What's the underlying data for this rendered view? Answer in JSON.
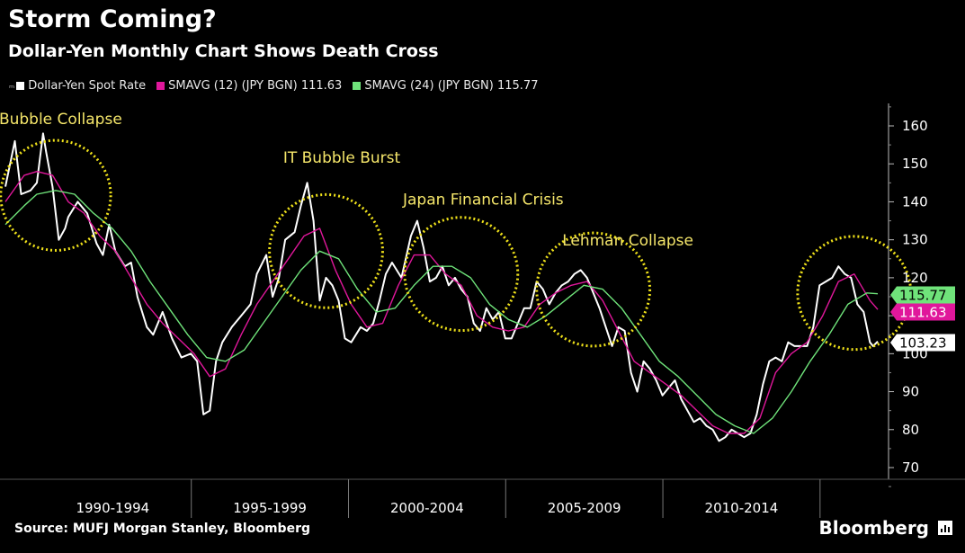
{
  "title": "Storm Coming?",
  "subtitle": "Dollar-Yen Monthly Chart Shows Death Cross",
  "source": "Source: MUFJ Morgan Stanley, Bloomberg",
  "brand": "Bloomberg",
  "legend": [
    {
      "label": "Dollar-Yen Spot Rate",
      "color": "#ffffff"
    },
    {
      "label": "SMAVG (12) (JPY BGN) 111.63",
      "color": "#e0179b"
    },
    {
      "label": "SMAVG (24) (JPY BGN) 115.77",
      "color": "#6fe37a"
    }
  ],
  "chart_data": {
    "type": "line",
    "x_range": [
      1989.0,
      2016.75
    ],
    "ylim": [
      65,
      165
    ],
    "y_ticks": [
      70,
      80,
      90,
      100,
      110,
      120,
      130,
      140,
      150,
      160
    ],
    "x_periods": [
      "1990-1994",
      "1995-1999",
      "2000-2004",
      "2005-2009",
      "2010-2014"
    ],
    "series": [
      {
        "name": "Dollar-Yen Spot Rate",
        "color": "#ffffff",
        "last_value": "103.23",
        "points": [
          [
            1989.0,
            144
          ],
          [
            1989.3,
            156
          ],
          [
            1989.5,
            142
          ],
          [
            1989.8,
            143
          ],
          [
            1990.0,
            145
          ],
          [
            1990.2,
            158
          ],
          [
            1990.3,
            153
          ],
          [
            1990.5,
            144
          ],
          [
            1990.7,
            130
          ],
          [
            1990.9,
            133
          ],
          [
            1991.0,
            136
          ],
          [
            1991.3,
            140
          ],
          [
            1991.6,
            137
          ],
          [
            1991.9,
            129
          ],
          [
            1992.1,
            126
          ],
          [
            1992.3,
            134
          ],
          [
            1992.5,
            127
          ],
          [
            1992.8,
            123
          ],
          [
            1993.0,
            124
          ],
          [
            1993.2,
            115
          ],
          [
            1993.5,
            107
          ],
          [
            1993.7,
            105
          ],
          [
            1994.0,
            111
          ],
          [
            1994.3,
            104
          ],
          [
            1994.6,
            99
          ],
          [
            1994.9,
            100
          ],
          [
            1995.1,
            98
          ],
          [
            1995.3,
            84
          ],
          [
            1995.5,
            85
          ],
          [
            1995.7,
            98
          ],
          [
            1995.9,
            103
          ],
          [
            1996.2,
            107
          ],
          [
            1996.5,
            110
          ],
          [
            1996.8,
            113
          ],
          [
            1997.0,
            121
          ],
          [
            1997.3,
            126
          ],
          [
            1997.5,
            115
          ],
          [
            1997.7,
            120
          ],
          [
            1997.9,
            130
          ],
          [
            1998.2,
            132
          ],
          [
            1998.4,
            139
          ],
          [
            1998.6,
            145
          ],
          [
            1998.8,
            135
          ],
          [
            1999.0,
            114
          ],
          [
            1999.2,
            120
          ],
          [
            1999.4,
            118
          ],
          [
            1999.6,
            114
          ],
          [
            1999.8,
            104
          ],
          [
            2000.0,
            103
          ],
          [
            2000.3,
            107
          ],
          [
            2000.5,
            106
          ],
          [
            2000.7,
            108
          ],
          [
            2000.9,
            114
          ],
          [
            2001.1,
            121
          ],
          [
            2001.3,
            124
          ],
          [
            2001.6,
            120
          ],
          [
            2001.9,
            131
          ],
          [
            2002.1,
            135
          ],
          [
            2002.3,
            128
          ],
          [
            2002.5,
            119
          ],
          [
            2002.7,
            120
          ],
          [
            2002.9,
            123
          ],
          [
            2003.1,
            118
          ],
          [
            2003.3,
            120
          ],
          [
            2003.5,
            117
          ],
          [
            2003.7,
            115
          ],
          [
            2003.9,
            108
          ],
          [
            2004.1,
            106
          ],
          [
            2004.3,
            112
          ],
          [
            2004.5,
            109
          ],
          [
            2004.7,
            111
          ],
          [
            2004.9,
            104
          ],
          [
            2005.1,
            104
          ],
          [
            2005.3,
            108
          ],
          [
            2005.5,
            112
          ],
          [
            2005.7,
            112
          ],
          [
            2005.9,
            119
          ],
          [
            2006.1,
            117
          ],
          [
            2006.3,
            113
          ],
          [
            2006.5,
            116
          ],
          [
            2006.7,
            118
          ],
          [
            2006.9,
            119
          ],
          [
            2007.1,
            121
          ],
          [
            2007.3,
            122
          ],
          [
            2007.5,
            120
          ],
          [
            2007.7,
            116
          ],
          [
            2007.9,
            112
          ],
          [
            2008.1,
            107
          ],
          [
            2008.3,
            102
          ],
          [
            2008.5,
            107
          ],
          [
            2008.7,
            106
          ],
          [
            2008.9,
            95
          ],
          [
            2009.1,
            90
          ],
          [
            2009.3,
            98
          ],
          [
            2009.5,
            96
          ],
          [
            2009.7,
            93
          ],
          [
            2009.9,
            89
          ],
          [
            2010.1,
            91
          ],
          [
            2010.3,
            93
          ],
          [
            2010.5,
            88
          ],
          [
            2010.7,
            85
          ],
          [
            2010.9,
            82
          ],
          [
            2011.1,
            83
          ],
          [
            2011.3,
            81
          ],
          [
            2011.5,
            80
          ],
          [
            2011.7,
            77
          ],
          [
            2011.9,
            78
          ],
          [
            2012.1,
            80
          ],
          [
            2012.3,
            79
          ],
          [
            2012.5,
            78
          ],
          [
            2012.7,
            79
          ],
          [
            2012.9,
            84
          ],
          [
            2013.1,
            92
          ],
          [
            2013.3,
            98
          ],
          [
            2013.5,
            99
          ],
          [
            2013.7,
            98
          ],
          [
            2013.9,
            103
          ],
          [
            2014.1,
            102
          ],
          [
            2014.3,
            102
          ],
          [
            2014.5,
            102
          ],
          [
            2014.7,
            107
          ],
          [
            2014.9,
            118
          ],
          [
            2015.1,
            119
          ],
          [
            2015.3,
            120
          ],
          [
            2015.5,
            123
          ],
          [
            2015.7,
            121
          ],
          [
            2015.9,
            120
          ],
          [
            2016.1,
            113
          ],
          [
            2016.2,
            112
          ],
          [
            2016.3,
            111
          ],
          [
            2016.4,
            107
          ],
          [
            2016.5,
            103
          ],
          [
            2016.6,
            102
          ],
          [
            2016.75,
            103.23
          ]
        ]
      },
      {
        "name": "SMAVG (12) (JPY BGN)",
        "color": "#e0179b",
        "last_value": "111.63",
        "points": [
          [
            1989.0,
            140
          ],
          [
            1989.6,
            147
          ],
          [
            1990.0,
            148
          ],
          [
            1990.5,
            147
          ],
          [
            1991.0,
            140
          ],
          [
            1991.5,
            137
          ],
          [
            1992.0,
            131
          ],
          [
            1992.5,
            127
          ],
          [
            1993.0,
            120
          ],
          [
            1993.5,
            113
          ],
          [
            1994.0,
            108
          ],
          [
            1994.5,
            104
          ],
          [
            1995.0,
            100
          ],
          [
            1995.5,
            94
          ],
          [
            1996.0,
            96
          ],
          [
            1996.5,
            105
          ],
          [
            1997.0,
            113
          ],
          [
            1997.5,
            119
          ],
          [
            1998.0,
            125
          ],
          [
            1998.5,
            131
          ],
          [
            1999.0,
            133
          ],
          [
            1999.5,
            122
          ],
          [
            2000.0,
            113
          ],
          [
            2000.5,
            107
          ],
          [
            2001.0,
            108
          ],
          [
            2001.5,
            118
          ],
          [
            2002.0,
            126
          ],
          [
            2002.5,
            126
          ],
          [
            2003.0,
            121
          ],
          [
            2003.5,
            118
          ],
          [
            2004.0,
            110
          ],
          [
            2004.5,
            107
          ],
          [
            2005.0,
            106
          ],
          [
            2005.5,
            107
          ],
          [
            2006.0,
            113
          ],
          [
            2006.5,
            116
          ],
          [
            2007.0,
            118
          ],
          [
            2007.5,
            119
          ],
          [
            2008.0,
            114
          ],
          [
            2008.5,
            106
          ],
          [
            2009.0,
            98
          ],
          [
            2009.5,
            95
          ],
          [
            2010.0,
            92
          ],
          [
            2010.5,
            89
          ],
          [
            2011.0,
            85
          ],
          [
            2011.5,
            81
          ],
          [
            2012.0,
            79
          ],
          [
            2012.5,
            79
          ],
          [
            2013.0,
            83
          ],
          [
            2013.5,
            95
          ],
          [
            2014.0,
            100
          ],
          [
            2014.5,
            103
          ],
          [
            2015.0,
            110
          ],
          [
            2015.5,
            119
          ],
          [
            2016.0,
            121
          ],
          [
            2016.5,
            114
          ],
          [
            2016.75,
            111.63
          ]
        ]
      },
      {
        "name": "SMAVG (24) (JPY BGN)",
        "color": "#6fe37a",
        "last_value": "115.77",
        "points": [
          [
            1989.0,
            134
          ],
          [
            1989.6,
            139
          ],
          [
            1990.0,
            142
          ],
          [
            1990.6,
            143
          ],
          [
            1991.2,
            142
          ],
          [
            1991.8,
            137
          ],
          [
            1992.4,
            133
          ],
          [
            1993.0,
            127
          ],
          [
            1993.6,
            119
          ],
          [
            1994.2,
            112
          ],
          [
            1994.8,
            105
          ],
          [
            1995.4,
            99
          ],
          [
            1996.0,
            98
          ],
          [
            1996.6,
            101
          ],
          [
            1997.2,
            108
          ],
          [
            1997.8,
            115
          ],
          [
            1998.4,
            122
          ],
          [
            1999.0,
            127
          ],
          [
            1999.6,
            125
          ],
          [
            2000.2,
            117
          ],
          [
            2000.8,
            111
          ],
          [
            2001.4,
            112
          ],
          [
            2002.0,
            118
          ],
          [
            2002.6,
            123
          ],
          [
            2003.2,
            123
          ],
          [
            2003.8,
            120
          ],
          [
            2004.4,
            113
          ],
          [
            2005.0,
            109
          ],
          [
            2005.6,
            107
          ],
          [
            2006.2,
            110
          ],
          [
            2006.8,
            114
          ],
          [
            2007.4,
            118
          ],
          [
            2008.0,
            117
          ],
          [
            2008.6,
            112
          ],
          [
            2009.2,
            105
          ],
          [
            2009.8,
            98
          ],
          [
            2010.4,
            94
          ],
          [
            2011.0,
            89
          ],
          [
            2011.6,
            84
          ],
          [
            2012.2,
            81
          ],
          [
            2012.8,
            79
          ],
          [
            2013.4,
            83
          ],
          [
            2014.0,
            90
          ],
          [
            2014.6,
            98
          ],
          [
            2015.2,
            105
          ],
          [
            2015.8,
            113
          ],
          [
            2016.4,
            116
          ],
          [
            2016.75,
            115.77
          ]
        ]
      }
    ],
    "annotations": [
      {
        "text": "Japan Bubble Collapse",
        "x": 1990.0,
        "y": 160.5
      },
      {
        "text": "IT Bubble Burst",
        "x": 1999.7,
        "y": 150.3
      },
      {
        "text": "Japan Financial Crisis",
        "x": 2004.2,
        "y": 139.3
      },
      {
        "text": "Lehman Collapse",
        "x": 2008.8,
        "y": 128.5
      }
    ],
    "highlight_circles": [
      {
        "x": 1990.6,
        "y": 141.7,
        "r_years": 1.75
      },
      {
        "x": 1999.2,
        "y": 127.0,
        "r_years": 1.8
      },
      {
        "x": 2003.5,
        "y": 121.0,
        "r_years": 1.8
      },
      {
        "x": 2007.7,
        "y": 116.9,
        "r_years": 1.8
      },
      {
        "x": 2016.0,
        "y": 116.0,
        "r_years": 1.8
      }
    ]
  }
}
